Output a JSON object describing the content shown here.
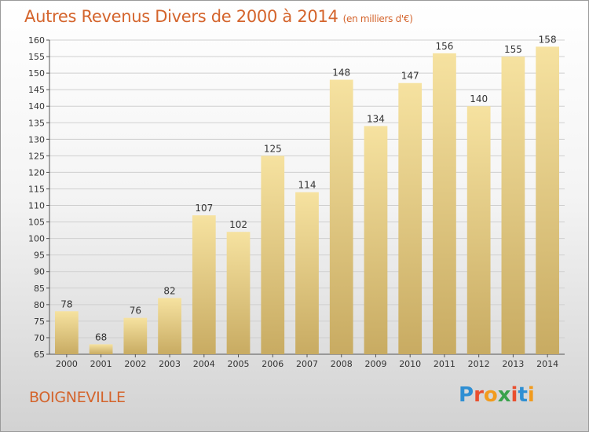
{
  "header": {
    "title": "Autres Revenus Divers de 2000 à 2014",
    "unit": "(en milliers d'€)"
  },
  "footer": {
    "city": "BOIGNEVILLE",
    "logo_text": "Proxiti",
    "logo_colors": [
      "#2f8fd3",
      "#e94f2f",
      "#f29b1d",
      "#3aa24c",
      "#e94f2f",
      "#2f8fd3",
      "#f29b1d"
    ]
  },
  "colors": {
    "title": "#d4642c",
    "bar_light": "#f6e2a0",
    "bar_dark": "#c8ab62",
    "grid": "#cfcfcf",
    "text": "#333333"
  },
  "chart_data": {
    "type": "bar",
    "categories": [
      "2000",
      "2001",
      "2002",
      "2003",
      "2004",
      "2005",
      "2006",
      "2007",
      "2008",
      "2009",
      "2010",
      "2011",
      "2012",
      "2013",
      "2014"
    ],
    "values": [
      78,
      68,
      76,
      82,
      107,
      102,
      125,
      114,
      148,
      134,
      147,
      156,
      140,
      155,
      158
    ],
    "title": "Autres Revenus Divers de 2000 à 2014",
    "xlabel": "",
    "ylabel": "",
    "ylim": [
      65,
      160
    ],
    "ytick_step": 5,
    "grid": true,
    "legend": "none"
  }
}
